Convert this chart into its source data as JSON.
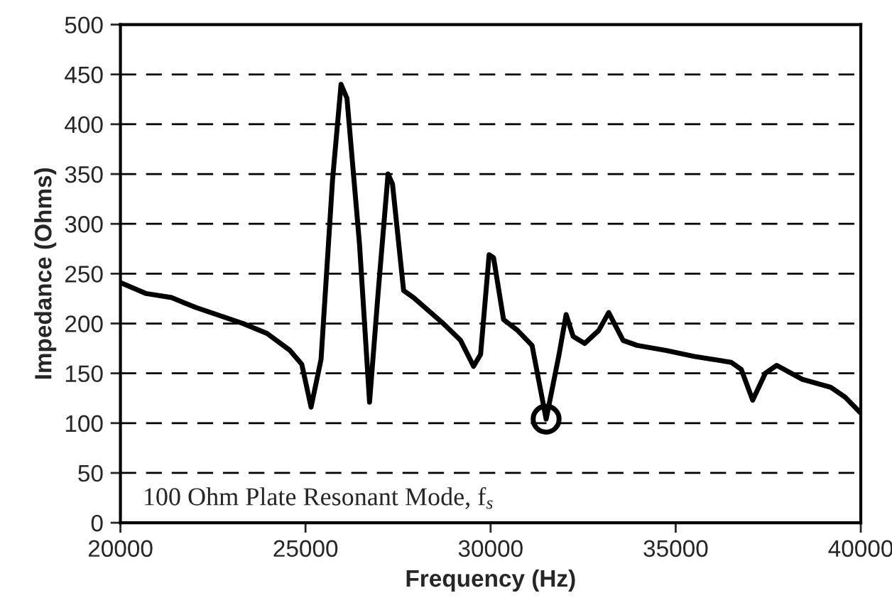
{
  "chart_data": {
    "type": "line",
    "xlabel": "Frequency (Hz)",
    "ylabel": "Impedance (Ohms)",
    "annotations": [
      "100 Ohm Plate Resonant Mode, f$_{s}$"
    ],
    "xlim": [
      20000,
      40000
    ],
    "xticks": [
      20000,
      25000,
      30000,
      35000,
      40000
    ],
    "ylim": [
      0,
      500
    ],
    "yticks": [
      0,
      50,
      100,
      150,
      200,
      250,
      300,
      350,
      400,
      450,
      500
    ],
    "grid": "y",
    "legend": false,
    "marker": "none",
    "line_style": "solid",
    "series": [
      {
        "color": "#000000",
        "x": [
          20000,
          20700,
          21380,
          22040,
          23310,
          23960,
          24580,
          24900,
          25150,
          25420,
          25730,
          25960,
          26120,
          26460,
          26730,
          26960,
          27230,
          27350,
          27650,
          27920,
          28690,
          29190,
          29540,
          29730,
          29960,
          30080,
          30350,
          30730,
          31120,
          31500,
          31850,
          32040,
          32230,
          32540,
          32920,
          33190,
          33580,
          33960,
          34730,
          35500,
          36500,
          36770,
          37080,
          37420,
          37730,
          38420,
          39190,
          39580,
          40000
        ],
        "values": [
          241,
          230,
          226,
          216,
          200,
          190,
          173,
          159,
          116,
          164,
          344,
          440,
          426,
          279,
          121,
          230,
          350,
          340,
          233,
          226,
          201,
          183,
          157,
          169,
          269,
          266,
          204,
          193,
          178,
          104,
          169,
          209,
          187,
          180,
          193,
          211,
          183,
          178,
          173,
          167,
          161,
          154,
          123,
          150,
          158,
          144,
          136,
          126,
          110
        ]
      }
    ]
  }
}
